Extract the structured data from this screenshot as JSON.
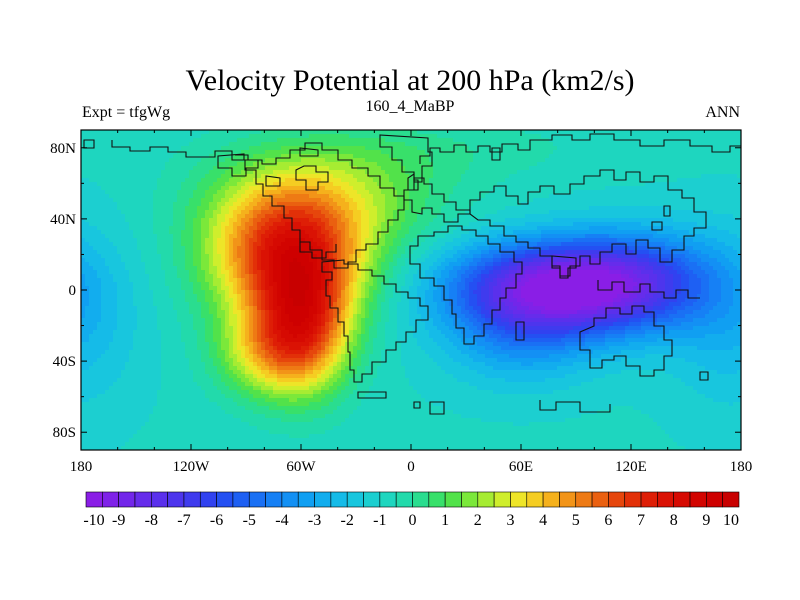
{
  "chart_data": {
    "type": "heatmap",
    "title": "Velocity Potential at 200 hPa (km2/s)",
    "subtitle_left": "Expt = tfgWg",
    "subtitle_center": "160_4_MaBP",
    "subtitle_right": "ANN",
    "projection": "cylindrical-equidistant",
    "xlim": [
      -180,
      180
    ],
    "ylim": [
      -90,
      90
    ],
    "x_ticks": [
      {
        "value": -180,
        "label": "180"
      },
      {
        "value": -120,
        "label": "120W"
      },
      {
        "value": -60,
        "label": "60W"
      },
      {
        "value": 0,
        "label": "0"
      },
      {
        "value": 60,
        "label": "60E"
      },
      {
        "value": 120,
        "label": "120E"
      },
      {
        "value": 180,
        "label": "180"
      }
    ],
    "y_ticks": [
      {
        "value": 80,
        "label": "80N"
      },
      {
        "value": 40,
        "label": "40N"
      },
      {
        "value": 0,
        "label": "0"
      },
      {
        "value": -40,
        "label": "40S"
      },
      {
        "value": -80,
        "label": "80S"
      }
    ],
    "field_centers": [
      {
        "name": "positive-center-americas",
        "lon": -67,
        "lat": 20,
        "value": 10
      },
      {
        "name": "negative-center-indian-ocean",
        "lon": 80,
        "lat": 2,
        "value": -10
      }
    ],
    "colorbar": {
      "min": -10,
      "max": 10,
      "step": 0.5,
      "labels": [
        "-10",
        "-9",
        "-8",
        "-7",
        "-6",
        "-5",
        "-4",
        "-3",
        "-2",
        "-1",
        "0",
        "1",
        "2",
        "3",
        "4",
        "5",
        "6",
        "7",
        "8",
        "9",
        "10"
      ],
      "colors": [
        "#8a1ee6",
        "#7f22e8",
        "#7226ea",
        "#662ceb",
        "#5a30ec",
        "#4d35ed",
        "#3f3bee",
        "#3142f0",
        "#2450f2",
        "#1e60f3",
        "#1a70f4",
        "#1680f5",
        "#1390f4",
        "#109ff2",
        "#12adee",
        "#15bbe8",
        "#18c6de",
        "#1ccfd0",
        "#1ed6bf",
        "#22daab",
        "#2add8f",
        "#38e06a",
        "#52e24a",
        "#7be83a",
        "#a6ec32",
        "#cfee2c",
        "#eee528",
        "#f5cd22",
        "#f5b11c",
        "#f29418",
        "#ee7a14",
        "#ea6010",
        "#e6460c",
        "#e23008",
        "#de1e06",
        "#da1204",
        "#d60a02",
        "#d20400",
        "#ce0000",
        "#c80000"
      ]
    }
  }
}
